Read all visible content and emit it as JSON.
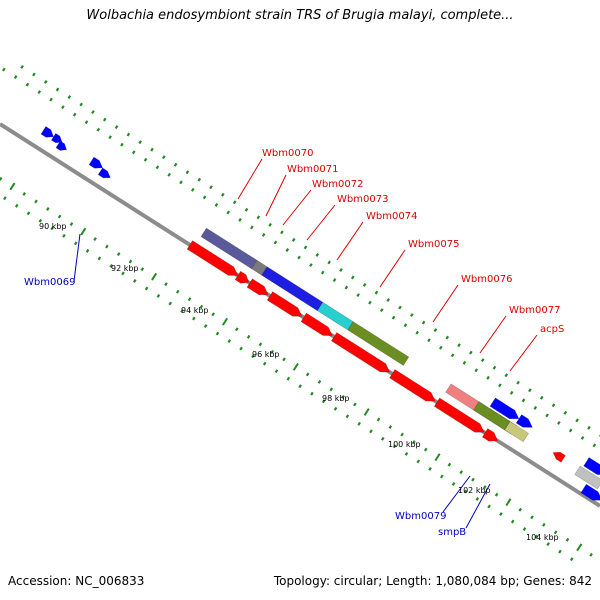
{
  "title": "Wolbachia endosymbiont strain TRS of Brugia malayi, complete...",
  "footer": {
    "accession": "Accession: NC_006833",
    "topology": "Topology: circular; Length: 1,080,084 bp; Genes: 842"
  },
  "colors": {
    "backbone": "#8c8c8c",
    "tick": "#228b22",
    "forward_gene": "#0000ff",
    "reverse_gene": "#ff0000",
    "label_forward": "#0000c0",
    "label_reverse": "#dd0000"
  },
  "scale_labels": [
    "90 kbp",
    "92 kbp",
    "94 kbp",
    "96 kbp",
    "98 kbp",
    "100 kbp",
    "102 kbp",
    "104 kbp"
  ],
  "gene_labels": [
    {
      "text": "Wbm0070",
      "color": "#dd0000"
    },
    {
      "text": "Wbm0071",
      "color": "#dd0000"
    },
    {
      "text": "Wbm0072",
      "color": "#dd0000"
    },
    {
      "text": "Wbm0073",
      "color": "#dd0000"
    },
    {
      "text": "Wbm0074",
      "color": "#dd0000"
    },
    {
      "text": "Wbm0075",
      "color": "#dd0000"
    },
    {
      "text": "Wbm0076",
      "color": "#dd0000"
    },
    {
      "text": "Wbm0077",
      "color": "#dd0000"
    },
    {
      "text": "acpS",
      "color": "#dd0000"
    },
    {
      "text": "Wbm0069",
      "color": "#0000c0"
    },
    {
      "text": "Wbm0079",
      "color": "#0000c0"
    },
    {
      "text": "smpB",
      "color": "#0000c0"
    }
  ]
}
